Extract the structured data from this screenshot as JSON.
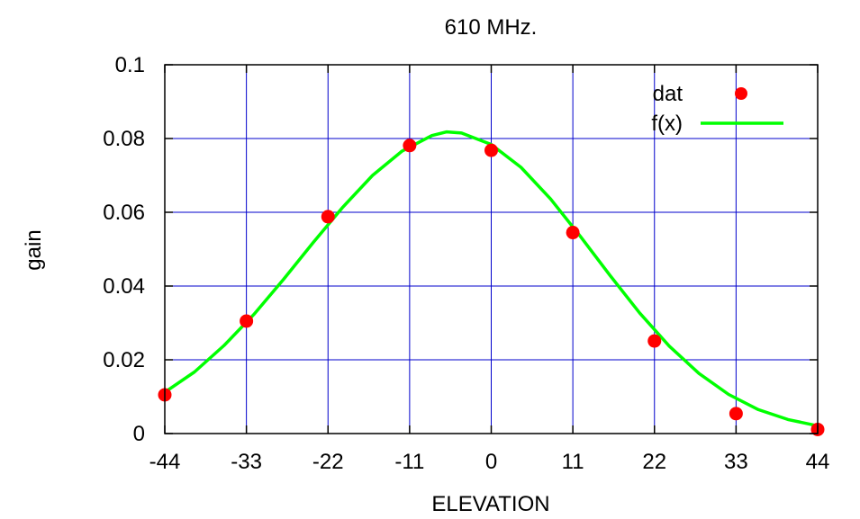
{
  "chart_data": {
    "type": "scatter",
    "title": "610 MHz.",
    "xlabel": "ELEVATION",
    "ylabel": "gain",
    "xlim": [
      -44,
      44
    ],
    "ylim": [
      0,
      0.1
    ],
    "x_ticks": [
      -44,
      -33,
      -22,
      -11,
      0,
      11,
      22,
      33,
      44
    ],
    "x_tick_labels": [
      "-44",
      "-33",
      "-22",
      "-11",
      "0",
      "11",
      "22",
      "33",
      "44"
    ],
    "y_ticks": [
      0,
      0.02,
      0.04,
      0.06,
      0.08,
      0.1
    ],
    "y_tick_labels": [
      "0",
      "0.02",
      "0.04",
      "0.06",
      "0.08",
      "0.1"
    ],
    "grid": true,
    "legend_position": "top-right",
    "series": [
      {
        "name": "dat",
        "style": "points",
        "color": "#ff0000",
        "x": [
          -44,
          -33,
          -22,
          -11,
          0,
          11,
          22,
          33,
          44
        ],
        "y": [
          0.0105,
          0.0305,
          0.0588,
          0.0781,
          0.0768,
          0.0545,
          0.0251,
          0.0054,
          0.0011
        ]
      },
      {
        "name": "f(x)",
        "style": "line",
        "color": "#00ff00",
        "x": [
          -44,
          -40,
          -36,
          -32,
          -28,
          -24,
          -20,
          -16,
          -12,
          -8,
          -6,
          -4,
          0,
          4,
          8,
          12,
          16,
          20,
          24,
          28,
          32,
          36,
          40,
          44
        ],
        "y": [
          0.0112,
          0.0167,
          0.0239,
          0.0323,
          0.0418,
          0.0518,
          0.0614,
          0.07,
          0.0766,
          0.0808,
          0.0818,
          0.0815,
          0.0784,
          0.0722,
          0.0636,
          0.0535,
          0.0429,
          0.0327,
          0.0237,
          0.0163,
          0.0106,
          0.0065,
          0.0038,
          0.0021
        ]
      }
    ],
    "colors": {
      "grid": "#0000cc",
      "axes": "#000000"
    }
  }
}
